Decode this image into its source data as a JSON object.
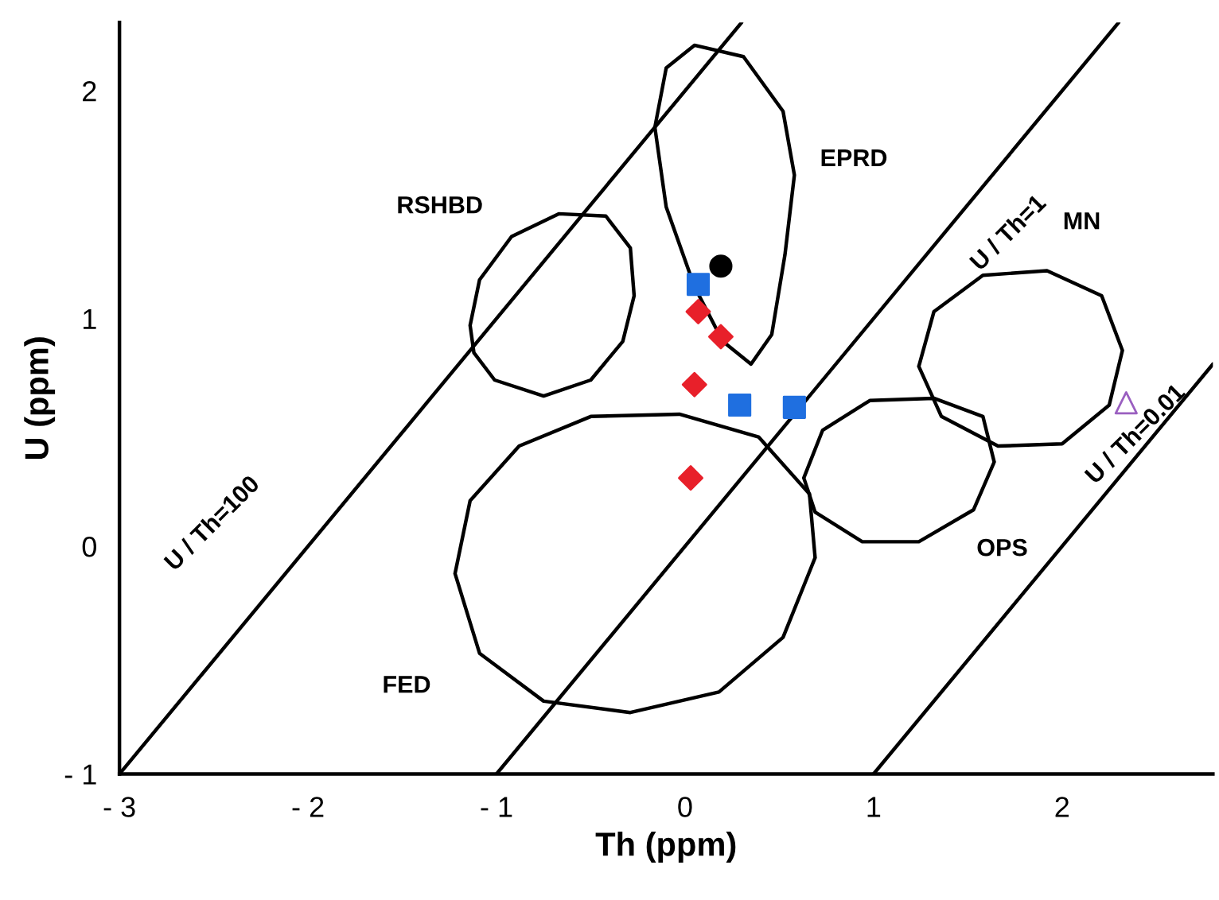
{
  "chart_data": {
    "type": "scatter",
    "xlabel": "Th (ppm)",
    "ylabel": "U (ppm)",
    "xlim": [
      -3,
      2.8
    ],
    "ylim": [
      -1,
      2.3
    ],
    "xticks": [
      {
        "value": -3,
        "label": "- 3"
      },
      {
        "value": -2,
        "label": "- 2"
      },
      {
        "value": -1,
        "label": "- 1"
      },
      0,
      1,
      2
    ],
    "yticks": [
      {
        "value": -1,
        "label": "- 1"
      },
      0,
      1,
      2
    ],
    "grid": false,
    "legend": false,
    "series": [
      {
        "name": "U / Th=100",
        "type": "line",
        "color": "#000000",
        "marker": "none",
        "x": [
          -3,
          0.3
        ],
        "values": [
          -1,
          2.3
        ]
      },
      {
        "name": "U / Th=1",
        "type": "line",
        "color": "#000000",
        "marker": "none",
        "x": [
          -1,
          2.3
        ],
        "values": [
          -1,
          2.3
        ]
      },
      {
        "name": "U / Th=0.01",
        "type": "line",
        "color": "#000000",
        "marker": "none",
        "x": [
          1,
          2.8
        ],
        "values": [
          -1,
          0.8
        ]
      },
      {
        "name": "RSHBD",
        "type": "line",
        "color": "#000000",
        "marker": "none",
        "x": [
          -1.14,
          -1.09,
          -0.92,
          -0.67,
          -0.42,
          -0.29,
          -0.27,
          null,
          -1.14,
          -1.12,
          -1.01,
          -0.75,
          -0.5,
          -0.33,
          -0.27
        ],
        "values": [
          0.97,
          1.17,
          1.36,
          1.46,
          1.45,
          1.31,
          1.1,
          null,
          0.97,
          0.85,
          0.73,
          0.66,
          0.73,
          0.9,
          1.1
        ]
      },
      {
        "name": "EPRD",
        "type": "line",
        "color": "#000000",
        "marker": "none",
        "x": [
          -0.16,
          -0.1,
          0.05,
          0.31,
          0.52,
          0.58,
          null,
          -0.16,
          -0.1,
          0.05,
          0.2,
          0.35,
          0.46,
          0.53,
          0.58
        ],
        "values": [
          1.84,
          2.1,
          2.2,
          2.15,
          1.91,
          1.63,
          null,
          1.84,
          1.49,
          1.14,
          0.9,
          0.8,
          0.93,
          1.28,
          1.63
        ]
      },
      {
        "name": "FED",
        "type": "line",
        "color": "#000000",
        "marker": "none",
        "x": [
          -1.22,
          -1.14,
          -0.88,
          -0.5,
          -0.03,
          0.39,
          0.66,
          0.69,
          null,
          -1.22,
          -1.09,
          -0.75,
          -0.29,
          0.18,
          0.52,
          0.69
        ],
        "values": [
          -0.12,
          0.2,
          0.44,
          0.57,
          0.58,
          0.48,
          0.23,
          -0.05,
          null,
          -0.12,
          -0.47,
          -0.68,
          -0.73,
          -0.64,
          -0.4,
          -0.05
        ]
      },
      {
        "name": "OPS",
        "type": "line",
        "color": "#000000",
        "marker": "none",
        "x": [
          0.63,
          0.73,
          0.98,
          1.32,
          1.58,
          1.64,
          null,
          0.63,
          0.69,
          0.94,
          1.24,
          1.53,
          1.64
        ],
        "values": [
          0.3,
          0.51,
          0.64,
          0.65,
          0.57,
          0.37,
          null,
          0.3,
          0.15,
          0.02,
          0.02,
          0.16,
          0.37
        ]
      },
      {
        "name": "MN",
        "type": "line",
        "color": "#000000",
        "marker": "none",
        "x": [
          1.24,
          1.32,
          1.58,
          1.92,
          2.21,
          2.32,
          null,
          1.24,
          1.36,
          1.66,
          2.0,
          2.25,
          2.32
        ],
        "values": [
          0.79,
          1.03,
          1.19,
          1.21,
          1.1,
          0.86,
          null,
          0.79,
          0.57,
          0.44,
          0.45,
          0.62,
          0.86
        ]
      },
      {
        "color": "#000000",
        "marker": "circle",
        "x": [
          0.19
        ],
        "values": [
          1.23
        ]
      },
      {
        "color": "#1f6fe0",
        "marker": "square",
        "x": [
          0.07,
          0.29,
          0.58
        ],
        "values": [
          1.15,
          0.62,
          0.61
        ]
      },
      {
        "color": "#e8202a",
        "marker": "diamond",
        "x": [
          0.07,
          0.19,
          0.05,
          0.03
        ],
        "values": [
          1.03,
          0.92,
          0.71,
          0.3
        ]
      },
      {
        "color": "#9a5fc0",
        "marker": "triangle",
        "x": [
          2.34
        ],
        "values": [
          0.63
        ]
      }
    ]
  }
}
